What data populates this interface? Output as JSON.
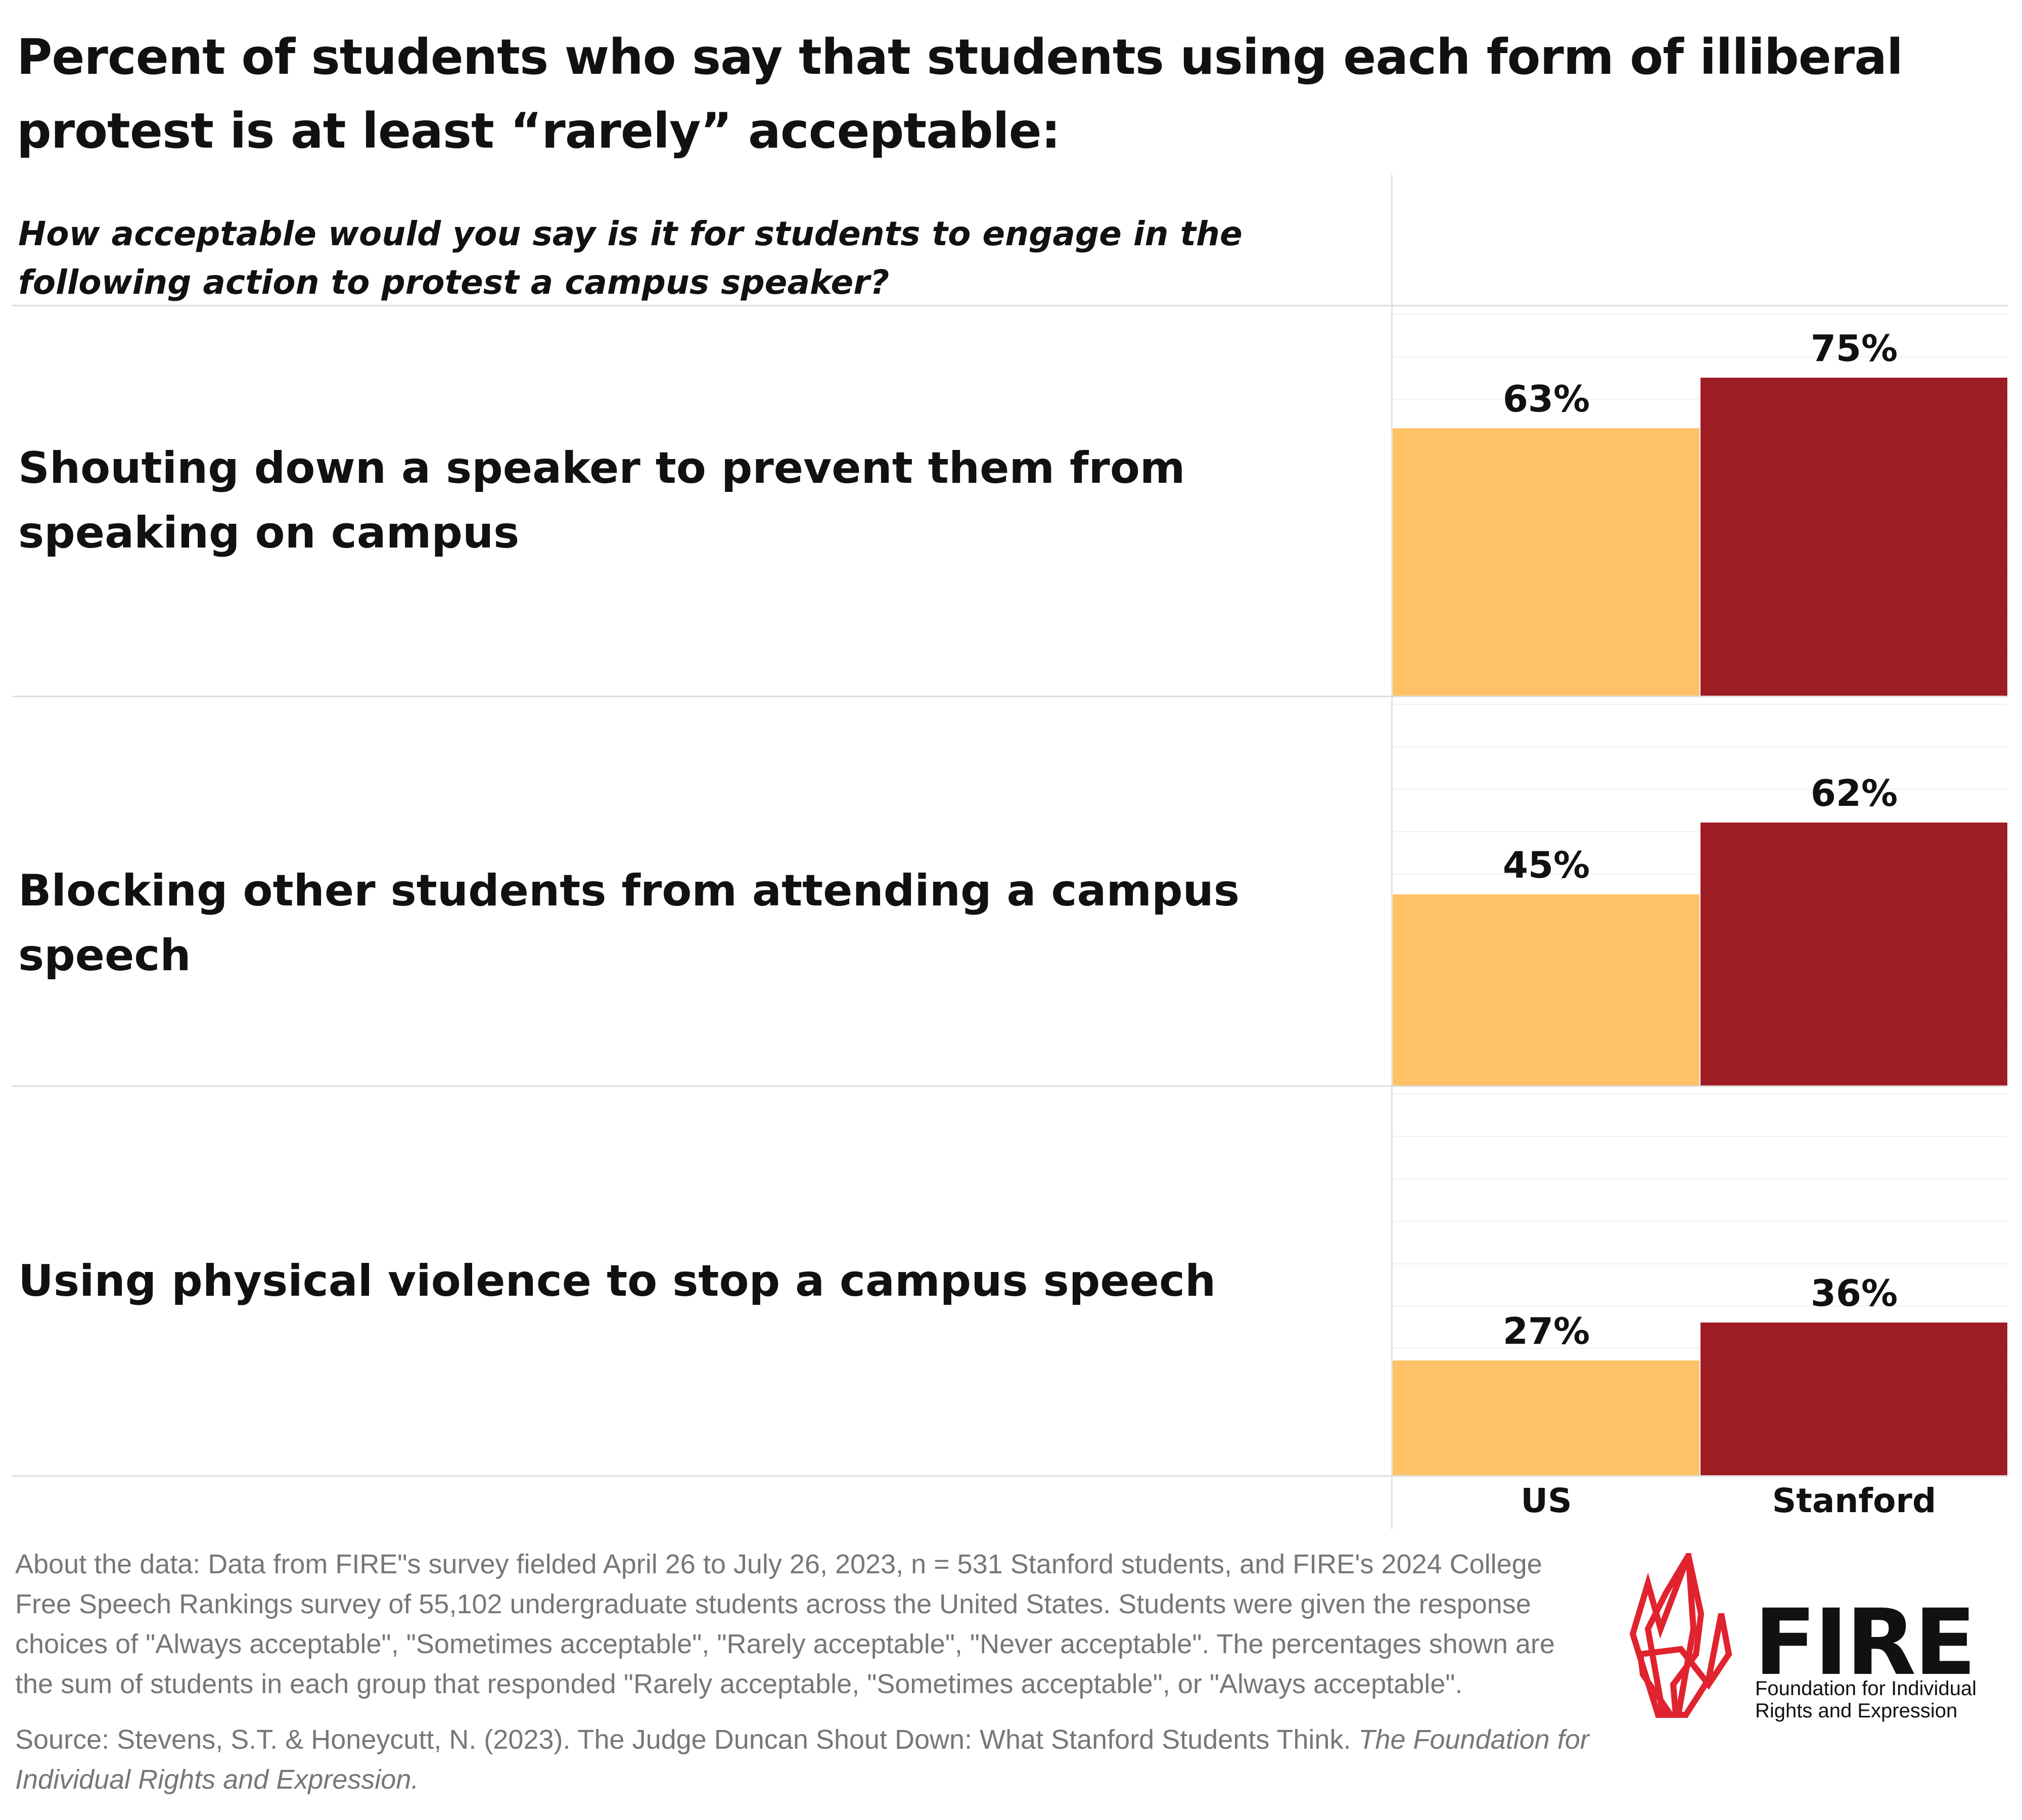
{
  "title": "Percent of students who say that students using each form of illiberal protest is at least “rarely” acceptable:",
  "question": "How acceptable would you say is it for students to engage in the following action to protest a campus speaker?",
  "chart_data": {
    "type": "bar",
    "orientation": "vertical-grouped",
    "categories": [
      "Shouting down a speaker to prevent them from speaking on campus",
      "Blocking other students from attending a campus speech",
      "Using physical violence to stop a campus speech"
    ],
    "series": [
      {
        "name": "US",
        "values": [
          63,
          45,
          27
        ],
        "color": "#FDC266"
      },
      {
        "name": "Stanford",
        "values": [
          75,
          62,
          36
        ],
        "color": "#9E1C24"
      }
    ],
    "value_labels": [
      [
        "63%",
        "45%",
        "27%"
      ],
      [
        "75%",
        "62%",
        "36%"
      ]
    ],
    "ylim": [
      0,
      100
    ],
    "grid": true,
    "unit": "%"
  },
  "footer": {
    "about": "About the data: Data from FIRE\"s survey fielded April 26 to July 26, 2023, n = 531 Stanford students, and FIRE's 2024 College Free Speech Rankings survey of 55,102 undergraduate students across the United States. Students were  given the response choices of \"Always acceptable\", \"Sometimes acceptable\", \"Rarely acceptable\", \"Never acceptable\". The percentages shown are the sum of students in each group that responded \"Rarely acceptable, \"Sometimes acceptable\", or \"Always acceptable\".",
    "source_plain": "Source: Stevens, S.T. & Honeycutt, N. (2023). The Judge Duncan Shout Down: What Stanford Students Think. ",
    "source_italic": "The Foundation for Individual Rights and Expression."
  },
  "logo": {
    "word": "FIRE",
    "subtitle_line1": "Foundation for Individual",
    "subtitle_line2": "Rights and Expression",
    "color": "#E0232E"
  }
}
